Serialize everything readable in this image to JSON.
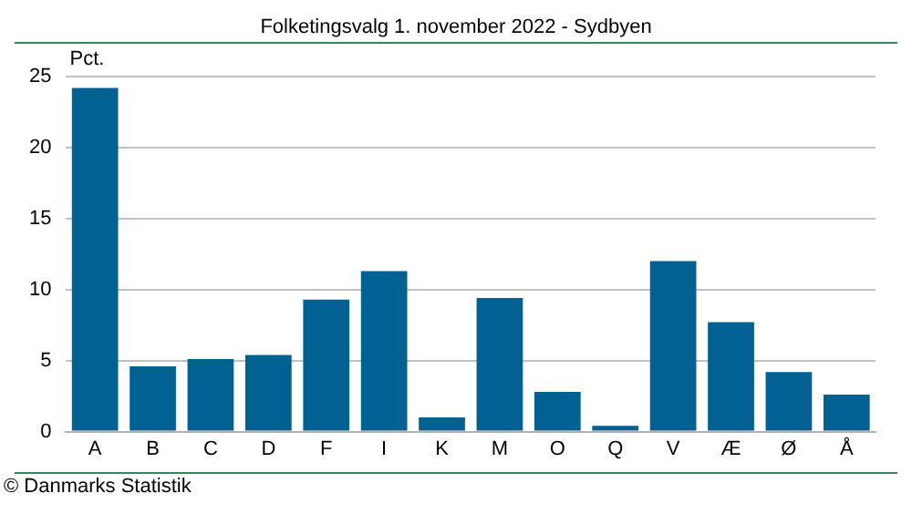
{
  "chart_data": {
    "type": "bar",
    "title": "Folketingsvalg 1. november 2022 - Sydbyen",
    "ylabel": "Pct.",
    "categories": [
      "A",
      "B",
      "C",
      "D",
      "F",
      "I",
      "K",
      "M",
      "O",
      "Q",
      "V",
      "Æ",
      "Ø",
      "Å"
    ],
    "values": [
      24.2,
      4.6,
      5.1,
      5.4,
      9.3,
      11.3,
      1.0,
      9.4,
      2.8,
      0.4,
      12.0,
      7.7,
      4.2,
      2.6
    ],
    "color": "#006192",
    "ylim": [
      0,
      25
    ],
    "yticks": [
      0,
      5,
      10,
      15,
      20,
      25
    ],
    "grid": "y",
    "legend": false,
    "annotations": [
      "© Danmarks Statistik"
    ]
  }
}
